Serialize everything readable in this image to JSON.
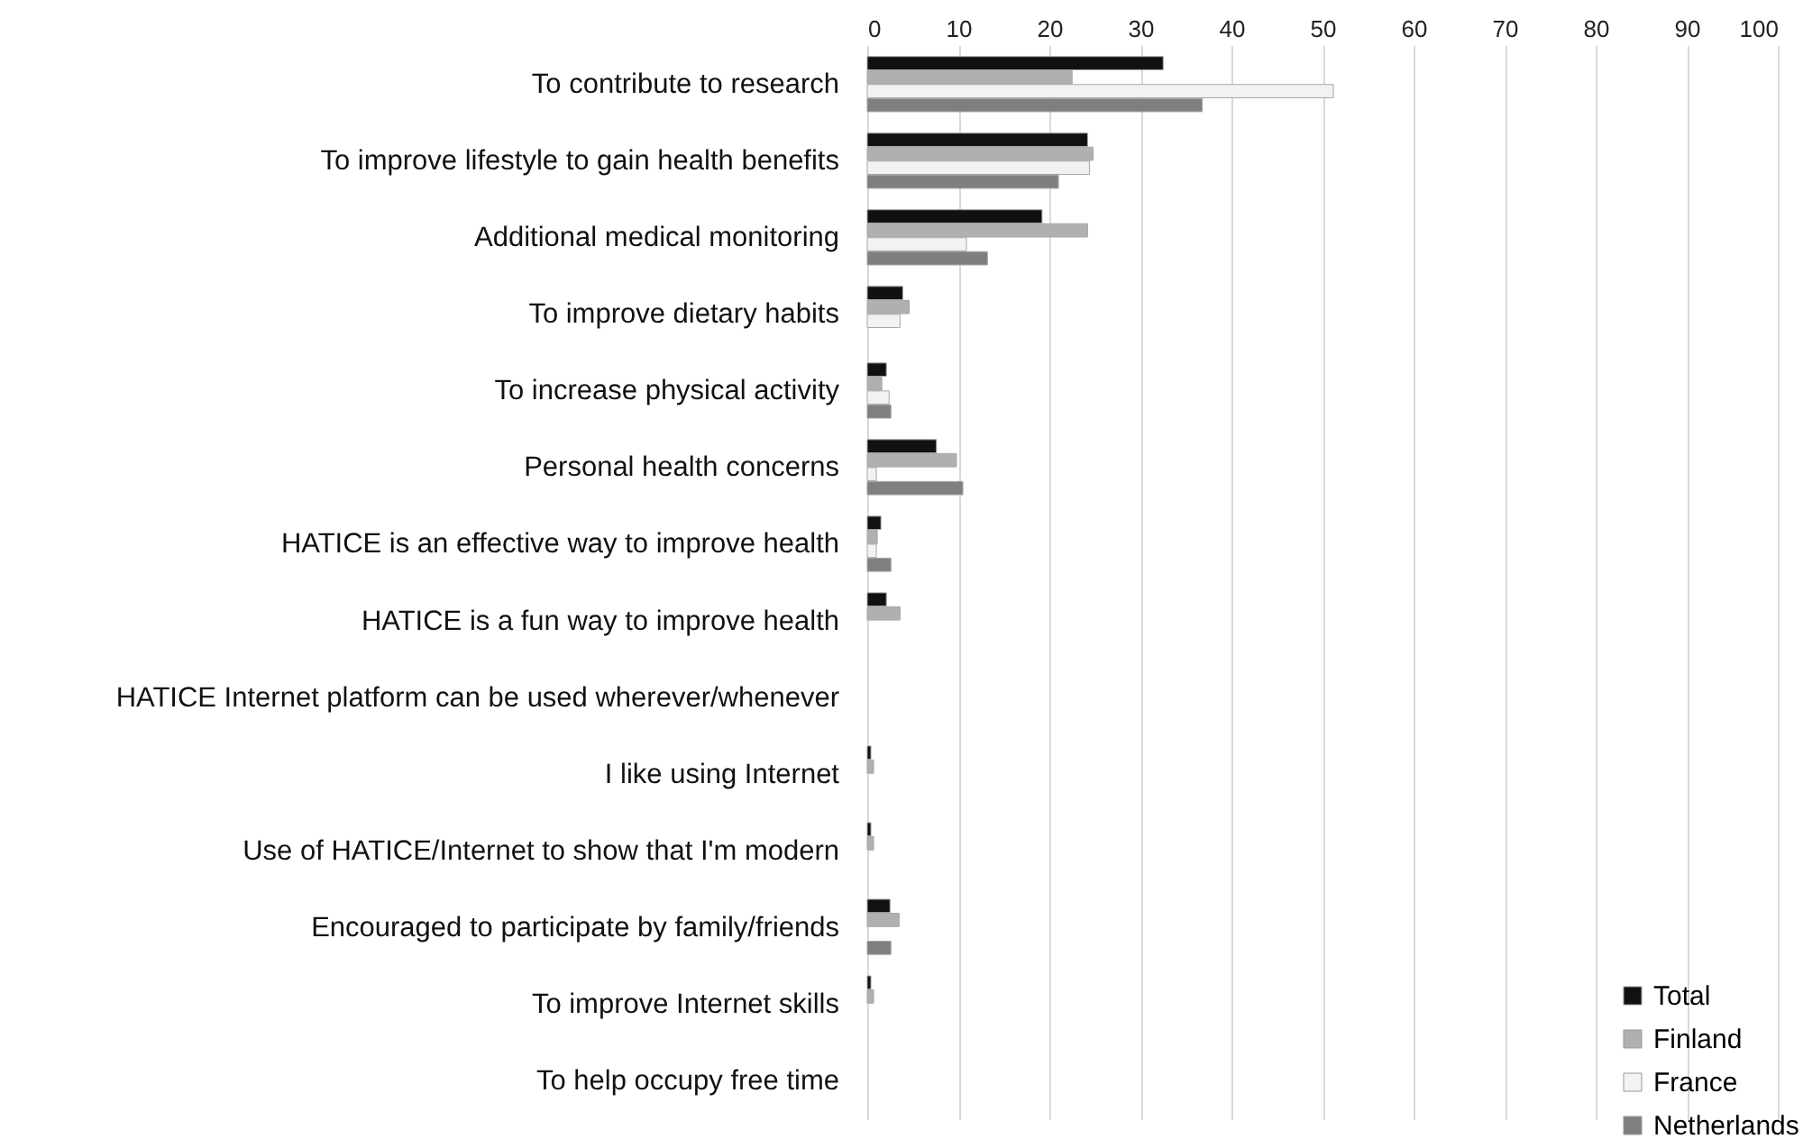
{
  "chart_data": {
    "type": "bar",
    "orientation": "horizontal",
    "categories": [
      "To contribute to research",
      "To improve lifestyle to gain health benefits",
      "Additional medical monitoring",
      "To improve dietary habits",
      "To increase physical activity",
      "Personal health concerns",
      "HATICE is an effective way to improve health",
      "HATICE is a fun way to improve health",
      "HATICE Internet platform can be used wherever/whenever",
      "I like using Internet",
      "Use of HATICE/Internet to show that I'm modern",
      "Encouraged to participate by family/friends",
      "To improve Internet skills",
      "To help occupy free time"
    ],
    "series": [
      {
        "name": "Total",
        "color": "#111111",
        "values": [
          32.5,
          24.2,
          19.2,
          3.9,
          2.1,
          7.6,
          1.5,
          2.1,
          0,
          0.4,
          0.4,
          2.5,
          0.4,
          0
        ]
      },
      {
        "name": "Finland",
        "color": "#b0b0b0",
        "values": [
          22.5,
          24.8,
          24.2,
          4.6,
          1.6,
          9.8,
          1.1,
          3.6,
          0,
          0.7,
          0.7,
          3.5,
          0.7,
          0
        ]
      },
      {
        "name": "France",
        "color": "#f2f2f2",
        "values": [
          51.2,
          24.4,
          10.9,
          3.6,
          2.4,
          1.0,
          1.0,
          0,
          0,
          0,
          0,
          0,
          0,
          0
        ]
      },
      {
        "name": "Netherlands",
        "color": "#7f7f7f",
        "values": [
          36.8,
          21.0,
          13.2,
          0,
          2.6,
          10.5,
          2.6,
          0,
          0,
          0,
          0,
          2.6,
          0,
          0
        ]
      }
    ],
    "xlim": [
      0,
      100
    ],
    "xticks": [
      0,
      10,
      20,
      30,
      40,
      50,
      60,
      70,
      80,
      90,
      100
    ],
    "grid": "x",
    "legend": "bottom right"
  }
}
